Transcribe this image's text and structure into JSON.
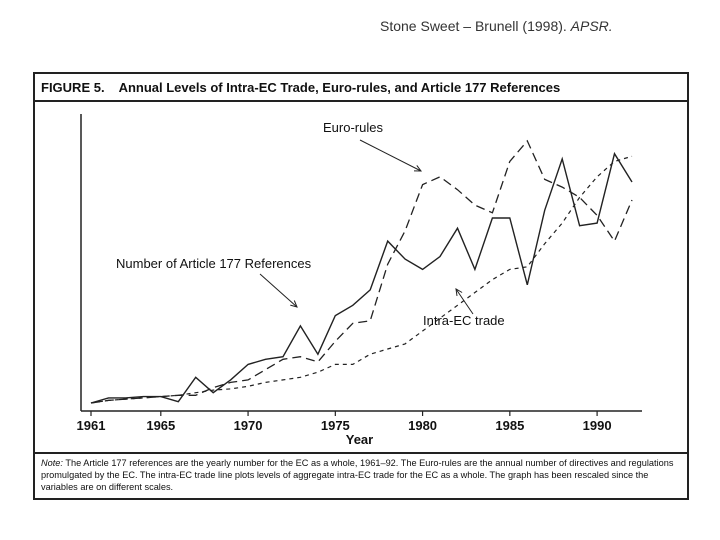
{
  "citation": {
    "authors": "Stone Sweet – Brunell (1998).",
    "journal": "APSR."
  },
  "figure": {
    "label": "FIGURE 5.",
    "title": "Annual Levels of Intra-EC Trade, Euro-rules, and Article 177 References",
    "note_label": "Note:",
    "note": "The Article 177 references are the yearly number for the EC as a whole, 1961–92. The Euro-rules are the annual number of directives and regulations promulgated by the EC. The intra-EC trade line plots levels of aggregate intra-EC trade for the EC as a whole. The graph has been rescaled since the variables are on different scales."
  },
  "chart_data": {
    "type": "line",
    "title": "Annual Levels of Intra-EC Trade, Euro-rules, and Article 177 References",
    "xlabel": "Year",
    "ylabel": "",
    "xlim": [
      1961,
      1992
    ],
    "ylim": [
      0,
      100
    ],
    "xticks": [
      1961,
      1965,
      1970,
      1975,
      1980,
      1985,
      1990
    ],
    "x": [
      1961,
      1962,
      1963,
      1964,
      1965,
      1966,
      1967,
      1968,
      1969,
      1970,
      1971,
      1972,
      1973,
      1974,
      1975,
      1976,
      1977,
      1978,
      1979,
      1980,
      1981,
      1982,
      1983,
      1984,
      1985,
      1986,
      1987,
      1988,
      1989,
      1990,
      1991,
      1992
    ],
    "series": [
      {
        "name": "Number of Article 177 References",
        "label": "Number of Article 177 References",
        "style": "solid",
        "values": [
          0,
          2,
          2,
          2.5,
          2.5,
          0.5,
          10,
          4,
          9,
          15,
          17,
          18,
          30,
          19,
          34,
          38,
          44,
          63,
          56,
          52,
          57,
          68,
          52,
          72,
          72,
          46,
          75,
          95,
          69,
          70,
          97,
          86
        ]
      },
      {
        "name": "Euro-rules",
        "label": "Euro-rules",
        "style": "dashed",
        "values": [
          0,
          1,
          1.5,
          2,
          2.5,
          3,
          3,
          6,
          8,
          9,
          13,
          17,
          18,
          16,
          24,
          31,
          32,
          54,
          67,
          85,
          88,
          83,
          77,
          74,
          94,
          102,
          87,
          84,
          80,
          73,
          63,
          79
        ]
      },
      {
        "name": "Intra-EC trade",
        "label": "Intra-EC trade",
        "style": "dotted",
        "values": [
          0,
          1,
          1.5,
          2,
          2.5,
          3,
          4,
          5,
          5.5,
          6.5,
          8,
          9,
          10,
          12,
          15,
          15,
          19,
          21,
          23,
          28,
          33,
          38,
          43,
          48,
          52,
          53,
          62,
          70,
          80,
          88,
          94,
          96
        ]
      }
    ],
    "annotations": [
      "Euro-rules",
      "Number of Article 177 References",
      "Intra-EC trade"
    ]
  }
}
